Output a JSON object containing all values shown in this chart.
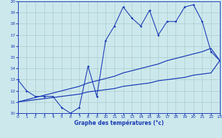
{
  "xlabel": "Graphe des températures (°c)",
  "bg_color": "#cce8ec",
  "grid_color": "#aacccc",
  "line_color": "#1a3ab5",
  "xmin": 0,
  "xmax": 23,
  "ymin": 10,
  "ymax": 20,
  "hours": [
    0,
    1,
    2,
    3,
    4,
    5,
    6,
    7,
    8,
    9,
    10,
    11,
    12,
    13,
    14,
    15,
    16,
    17,
    18,
    19,
    20,
    21,
    22,
    23
  ],
  "temps": [
    13,
    12,
    11.5,
    11.5,
    11.5,
    10.5,
    10.0,
    10.5,
    14.2,
    11.5,
    16.5,
    17.8,
    19.5,
    18.5,
    17.8,
    19.2,
    17.0,
    18.2,
    18.2,
    19.5,
    19.7,
    18.2,
    15.5,
    14.7
  ],
  "trend1": [
    11.0,
    11.2,
    11.4,
    11.6,
    11.8,
    12.0,
    12.2,
    12.4,
    12.7,
    12.9,
    13.1,
    13.3,
    13.6,
    13.8,
    14.0,
    14.2,
    14.4,
    14.7,
    14.9,
    15.1,
    15.3,
    15.5,
    15.8,
    14.7
  ],
  "trend2": [
    11.0,
    11.1,
    11.2,
    11.3,
    11.4,
    11.5,
    11.6,
    11.7,
    11.9,
    12.0,
    12.1,
    12.2,
    12.4,
    12.5,
    12.6,
    12.7,
    12.9,
    13.0,
    13.1,
    13.2,
    13.4,
    13.5,
    13.6,
    14.7
  ]
}
